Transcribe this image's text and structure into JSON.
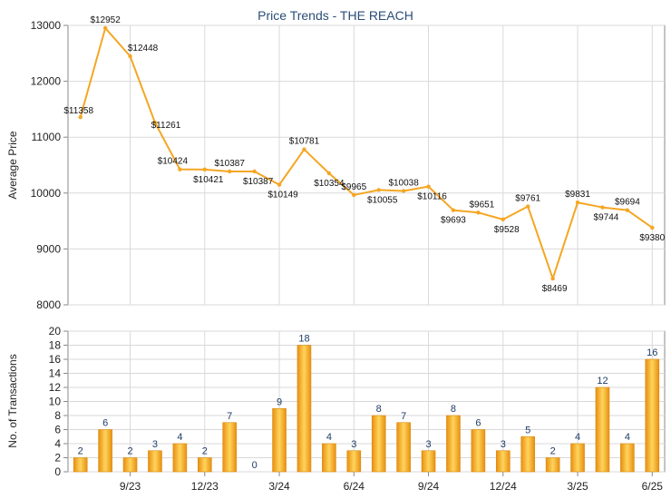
{
  "title": "Price Trends - THE REACH",
  "colors": {
    "line": "#f5a623",
    "bar_light": "#ffd45c",
    "bar_dark": "#e88f10",
    "grid": "#d9d9d9",
    "axis": "#888888",
    "title": "#2a4d77"
  },
  "chart_data": [
    {
      "type": "line",
      "ylabel": "Average Price",
      "ylim": [
        8000,
        13000
      ],
      "yticks": [
        "8000",
        "9000",
        "10000",
        "11000",
        "12000",
        "13000"
      ],
      "values": [
        11358,
        12952,
        12448,
        11261,
        10424,
        10421,
        10387,
        10387,
        10149,
        10781,
        10354,
        9965,
        10055,
        10038,
        10116,
        9693,
        9651,
        9528,
        9761,
        8469,
        9831,
        9744,
        9694,
        9380
      ],
      "point_labels": [
        "$11358",
        "$12952",
        "$12448",
        "$11261",
        "$10424",
        "$10421",
        "$10387",
        "$10387",
        "$10149",
        "$10781",
        "$10354",
        "$9965",
        "$10055",
        "$10038",
        "$10116",
        "$9693",
        "$9651",
        "$9528",
        "$9761",
        "$8469",
        "$9831",
        "$9744",
        "$9694",
        "$9380"
      ],
      "grid": true
    },
    {
      "type": "bar",
      "ylabel": "No. of Transactions",
      "ylim": [
        0,
        20
      ],
      "yticks": [
        "0",
        "2",
        "4",
        "6",
        "8",
        "10",
        "12",
        "14",
        "16",
        "18",
        "20"
      ],
      "values": [
        2,
        6,
        2,
        3,
        4,
        2,
        7,
        0,
        9,
        18,
        4,
        3,
        8,
        7,
        3,
        8,
        6,
        3,
        5,
        2,
        4,
        12,
        4,
        16
      ],
      "value_labels": [
        "2",
        "6",
        "2",
        "3",
        "4",
        "2",
        "7",
        "0",
        "9",
        "18",
        "4",
        "3",
        "8",
        "7",
        "3",
        "8",
        "6",
        "3",
        "5",
        "2",
        "4",
        "12",
        "4",
        "16"
      ],
      "x_tick_labels": [
        "9/23",
        "12/23",
        "3/24",
        "6/24",
        "9/24",
        "12/24",
        "3/25",
        "6/25"
      ],
      "x_tick_months": [
        2,
        5,
        8,
        11,
        14,
        17,
        20,
        23
      ],
      "grid": true
    }
  ]
}
